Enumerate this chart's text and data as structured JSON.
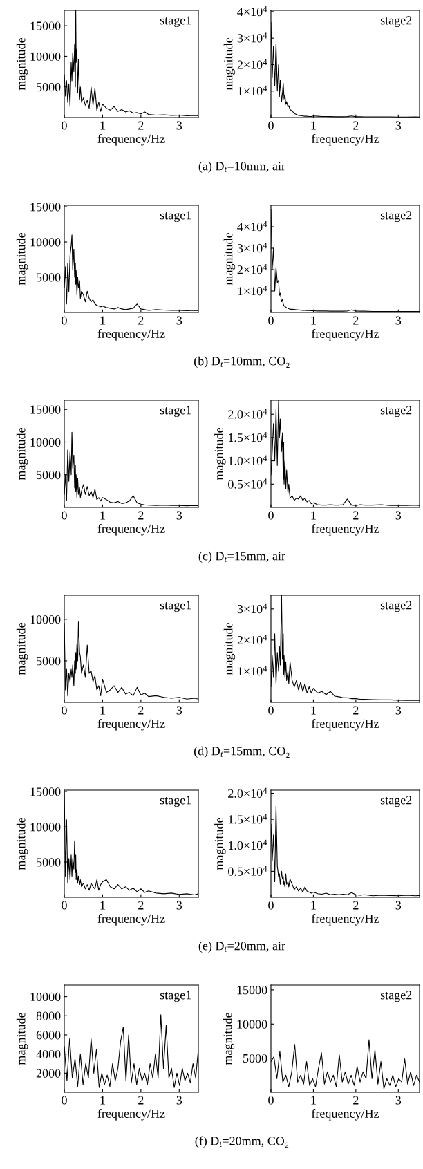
{
  "chart_data": [
    {
      "type": "line",
      "xlabel": "frequency/Hz",
      "ylabel": "magnitude",
      "xlim": [
        0,
        3.5
      ],
      "xticks": [
        0,
        1,
        2,
        3
      ],
      "ylim": [
        0,
        17500
      ],
      "yticks": [
        5000,
        10000,
        15000
      ],
      "x": [
        0,
        0.03,
        0.06,
        0.09,
        0.12,
        0.15,
        0.18,
        0.2,
        0.22,
        0.25,
        0.27,
        0.29,
        0.3,
        0.31,
        0.33,
        0.35,
        0.37,
        0.4,
        0.42,
        0.45,
        0.5,
        0.55,
        0.6,
        0.65,
        0.7,
        0.75,
        0.8,
        0.85,
        0.9,
        0.95,
        1.0,
        1.1,
        1.2,
        1.3,
        1.4,
        1.5,
        1.6,
        1.7,
        1.8,
        1.9,
        2.0,
        2.1,
        2.2,
        2.4,
        2.6,
        2.8,
        3.0,
        3.2,
        3.4,
        3.5
      ],
      "series": [
        {
          "color": "#000000",
          "values": [
            7000,
            3500,
            6000,
            2500,
            5500,
            1800,
            9000,
            6000,
            10500,
            7500,
            12000,
            5000,
            17500,
            9000,
            11200,
            4000,
            9500,
            3000,
            5000,
            2500,
            3200,
            2000,
            2800,
            1500,
            5000,
            2000,
            4800,
            1200,
            2500,
            1000,
            2200,
            1500,
            1200,
            1800,
            1000,
            1300,
            900,
            1100,
            700,
            800,
            600,
            900,
            500,
            400,
            450,
            350,
            400,
            300,
            350,
            300
          ]
        }
      ],
      "annotations": [
        "stage1",
        "(a) D$_{t}$=10mm, air"
      ]
    },
    {
      "type": "line",
      "xlabel": "frequency/Hz",
      "ylabel": "magnitude",
      "xlim": [
        0,
        3.5
      ],
      "xticks": [
        0,
        1,
        2,
        3
      ],
      "ylim": [
        0,
        40500
      ],
      "yticks": [
        {
          "value": 10000,
          "label": "1×10$^{4}$"
        },
        {
          "value": 20000,
          "label": "2×10$^{4}$"
        },
        {
          "value": 30000,
          "label": "3×10$^{4}$"
        },
        {
          "value": 40000,
          "label": "4×10$^{4}$"
        }
      ],
      "x": [
        0,
        0.03,
        0.06,
        0.09,
        0.12,
        0.15,
        0.18,
        0.2,
        0.22,
        0.25,
        0.27,
        0.29,
        0.3,
        0.31,
        0.33,
        0.35,
        0.37,
        0.4,
        0.42,
        0.45,
        0.5,
        0.55,
        0.6,
        0.65,
        0.7,
        0.75,
        0.8,
        0.85,
        0.9,
        0.95,
        1.0,
        1.1,
        1.2,
        1.3,
        1.4,
        1.5,
        1.6,
        1.7,
        1.8,
        1.9,
        2.0,
        2.1,
        2.2,
        2.4,
        2.6,
        2.8,
        3.0,
        3.2,
        3.4,
        3.5
      ],
      "series": [
        {
          "color": "#000000",
          "values": [
            36000,
            15000,
            27000,
            12000,
            28000,
            10000,
            20000,
            8000,
            14000,
            6000,
            9000,
            13000,
            10000,
            7000,
            8500,
            5000,
            6000,
            4000,
            4500,
            3000,
            2500,
            1500,
            1200,
            800,
            700,
            600,
            500,
            500,
            400,
            400,
            600,
            500,
            400,
            400,
            350,
            300,
            300,
            300,
            350,
            600,
            300,
            300,
            250,
            250,
            250,
            250,
            200,
            200,
            250,
            200
          ]
        }
      ],
      "annotations": [
        "stage2"
      ]
    },
    {
      "type": "line",
      "xlabel": "frequency/Hz",
      "ylabel": "magnitude",
      "xlim": [
        0,
        3.5
      ],
      "xticks": [
        0,
        1,
        2,
        3
      ],
      "ylim": [
        0,
        15200
      ],
      "yticks": [
        5000,
        10000,
        15000
      ],
      "x": [
        0,
        0.03,
        0.06,
        0.09,
        0.12,
        0.15,
        0.18,
        0.2,
        0.22,
        0.25,
        0.27,
        0.29,
        0.3,
        0.31,
        0.33,
        0.35,
        0.37,
        0.4,
        0.42,
        0.45,
        0.5,
        0.55,
        0.6,
        0.65,
        0.7,
        0.75,
        0.8,
        0.85,
        0.9,
        0.95,
        1.0,
        1.1,
        1.2,
        1.3,
        1.4,
        1.5,
        1.6,
        1.7,
        1.8,
        1.9,
        2.0,
        2.1,
        2.2,
        2.4,
        2.6,
        2.8,
        3.0,
        3.2,
        3.4,
        3.5
      ],
      "series": [
        {
          "color": "#000000",
          "values": [
            3500,
            6500,
            1200,
            7000,
            3000,
            8000,
            9500,
            11000,
            6000,
            9000,
            5000,
            7000,
            4000,
            6000,
            2500,
            5000,
            3500,
            4500,
            2000,
            3000,
            2500,
            1500,
            3000,
            2000,
            1500,
            1800,
            1200,
            1000,
            900,
            800,
            900,
            700,
            600,
            500,
            700,
            500,
            400,
            500,
            600,
            1200,
            500,
            400,
            300,
            400,
            350,
            300,
            300,
            250,
            300,
            250
          ]
        }
      ],
      "annotations": [
        "stage1",
        "(b) D$_{t}$=10mm, CO₂"
      ]
    },
    {
      "type": "line",
      "xlabel": "frequency/Hz",
      "ylabel": "magnitude",
      "xlim": [
        0,
        3.5
      ],
      "xticks": [
        0,
        1,
        2,
        3
      ],
      "ylim": [
        0,
        50000
      ],
      "yticks": [
        {
          "value": 10000,
          "label": "1×10$^{4}$"
        },
        {
          "value": 20000,
          "label": "2×10$^{4}$"
        },
        {
          "value": 30000,
          "label": "3×10$^{4}$"
        },
        {
          "value": 40000,
          "label": "4×10$^{4}$"
        }
      ],
      "x": [
        0,
        0.03,
        0.06,
        0.09,
        0.12,
        0.15,
        0.18,
        0.2,
        0.22,
        0.25,
        0.27,
        0.29,
        0.3,
        0.31,
        0.33,
        0.35,
        0.37,
        0.4,
        0.42,
        0.45,
        0.5,
        0.55,
        0.6,
        0.65,
        0.7,
        0.75,
        0.8,
        0.85,
        0.9,
        0.95,
        1.0,
        1.1,
        1.2,
        1.3,
        1.4,
        1.5,
        1.6,
        1.7,
        1.8,
        1.9,
        2.0,
        2.1,
        2.2,
        2.4,
        2.6,
        2.8,
        3.0,
        3.2,
        3.4,
        3.5
      ],
      "series": [
        {
          "color": "#000000",
          "values": [
            48000,
            20000,
            30000,
            10000,
            21000,
            14000,
            15000,
            8000,
            9000,
            5000,
            6000,
            4000,
            3500,
            3000,
            2800,
            2500,
            2200,
            2000,
            1800,
            1500,
            1500,
            1400,
            1300,
            1200,
            1100,
            1000,
            1000,
            900,
            900,
            800,
            800,
            700,
            700,
            700,
            600,
            600,
            600,
            600,
            700,
            1200,
            700,
            600,
            600,
            500,
            500,
            500,
            500,
            500,
            500,
            500
          ]
        }
      ],
      "annotations": [
        "stage2"
      ]
    },
    {
      "type": "line",
      "xlabel": "frequency/Hz",
      "ylabel": "magnitude",
      "xlim": [
        0,
        3.5
      ],
      "xticks": [
        0,
        1,
        2,
        3
      ],
      "ylim": [
        0,
        16400
      ],
      "yticks": [
        5000,
        10000,
        15000
      ],
      "x": [
        0,
        0.03,
        0.06,
        0.09,
        0.12,
        0.15,
        0.18,
        0.2,
        0.22,
        0.25,
        0.27,
        0.29,
        0.3,
        0.31,
        0.33,
        0.35,
        0.37,
        0.4,
        0.42,
        0.45,
        0.5,
        0.55,
        0.6,
        0.65,
        0.7,
        0.75,
        0.8,
        0.85,
        0.9,
        0.95,
        1.0,
        1.1,
        1.2,
        1.3,
        1.4,
        1.5,
        1.6,
        1.7,
        1.8,
        1.9,
        2.0,
        2.1,
        2.2,
        2.4,
        2.6,
        2.8,
        3.0,
        3.2,
        3.4,
        3.5
      ],
      "series": [
        {
          "color": "#000000",
          "values": [
            2000,
            5000,
            1000,
            8800,
            4000,
            8500,
            5000,
            11500,
            6000,
            8000,
            3000,
            6500,
            2500,
            5000,
            1500,
            4500,
            2000,
            3000,
            1500,
            2500,
            3500,
            2000,
            3200,
            1800,
            2500,
            1500,
            2800,
            1200,
            1500,
            1000,
            1500,
            1200,
            800,
            700,
            900,
            600,
            700,
            1000,
            1800,
            700,
            500,
            400,
            350,
            300,
            350,
            300,
            300,
            250,
            300,
            250
          ]
        }
      ],
      "annotations": [
        "stage1",
        "(c) D$_{t}$=15mm, air"
      ]
    },
    {
      "type": "line",
      "xlabel": "frequency/Hz",
      "ylabel": "magnitude",
      "xlim": [
        0,
        3.5
      ],
      "xticks": [
        0,
        1,
        2,
        3
      ],
      "ylim": [
        0,
        23000
      ],
      "yticks": [
        {
          "value": 5000,
          "label": "0.5×10$^{4}$"
        },
        {
          "value": 10000,
          "label": "1.0×10$^{4}$"
        },
        {
          "value": 15000,
          "label": "1.5×10$^{4}$"
        },
        {
          "value": 20000,
          "label": "2.0×10$^{4}$"
        }
      ],
      "x": [
        0,
        0.03,
        0.06,
        0.09,
        0.12,
        0.15,
        0.18,
        0.2,
        0.22,
        0.25,
        0.27,
        0.29,
        0.3,
        0.31,
        0.33,
        0.35,
        0.37,
        0.4,
        0.42,
        0.45,
        0.5,
        0.55,
        0.6,
        0.65,
        0.7,
        0.75,
        0.8,
        0.85,
        0.9,
        0.95,
        1.0,
        1.1,
        1.2,
        1.3,
        1.4,
        1.5,
        1.6,
        1.7,
        1.8,
        1.9,
        2.0,
        2.1,
        2.2,
        2.4,
        2.6,
        2.8,
        3.0,
        3.2,
        3.4,
        3.5
      ],
      "series": [
        {
          "color": "#000000",
          "values": [
            7000,
            12000,
            18000,
            10000,
            21000,
            9000,
            23000,
            15000,
            19000,
            12000,
            16000,
            6000,
            14000,
            5000,
            10000,
            4000,
            8000,
            3000,
            5000,
            2000,
            2500,
            1500,
            2000,
            1800,
            2500,
            1500,
            2000,
            1200,
            1500,
            800,
            1000,
            600,
            500,
            500,
            600,
            500,
            500,
            600,
            1800,
            500,
            400,
            600,
            500,
            500,
            600,
            400,
            400,
            400,
            500,
            400
          ]
        }
      ],
      "annotations": [
        "stage2"
      ]
    },
    {
      "type": "line",
      "xlabel": "frequency/Hz",
      "ylabel": "magnitude",
      "xlim": [
        0,
        3.5
      ],
      "xticks": [
        0,
        1,
        2,
        3
      ],
      "ylim": [
        0,
        12900
      ],
      "yticks": [
        5000,
        10000
      ],
      "x": [
        0,
        0.03,
        0.06,
        0.09,
        0.12,
        0.15,
        0.18,
        0.2,
        0.22,
        0.25,
        0.27,
        0.29,
        0.3,
        0.31,
        0.33,
        0.35,
        0.37,
        0.4,
        0.42,
        0.45,
        0.5,
        0.55,
        0.6,
        0.65,
        0.7,
        0.75,
        0.8,
        0.85,
        0.9,
        0.95,
        1.0,
        1.1,
        1.2,
        1.3,
        1.4,
        1.5,
        1.6,
        1.7,
        1.8,
        1.9,
        2.0,
        2.1,
        2.2,
        2.4,
        2.6,
        2.8,
        3.0,
        3.2,
        3.4,
        3.5
      ],
      "series": [
        {
          "color": "#000000",
          "values": [
            9500,
            1500,
            4000,
            800,
            3500,
            2500,
            4000,
            3000,
            4500,
            2000,
            5000,
            3500,
            6000,
            4000,
            7000,
            5000,
            9700,
            6000,
            5500,
            3500,
            4500,
            3000,
            6900,
            3500,
            3800,
            2500,
            3200,
            1500,
            2000,
            800,
            2800,
            1200,
            1500,
            2000,
            1200,
            1800,
            1000,
            1200,
            800,
            1800,
            900,
            1100,
            700,
            800,
            600,
            500,
            600,
            400,
            500,
            400
          ]
        }
      ],
      "annotations": [
        "stage1",
        "(d) D$_{t}$=15mm, CO₂"
      ]
    },
    {
      "type": "line",
      "xlabel": "frequency/Hz",
      "ylabel": "magnitude",
      "xlim": [
        0,
        3.5
      ],
      "xticks": [
        0,
        1,
        2,
        3
      ],
      "ylim": [
        0,
        34400
      ],
      "yticks": [
        {
          "value": 10000,
          "label": "1×10$^{4}$"
        },
        {
          "value": 20000,
          "label": "2×10$^{4}$"
        },
        {
          "value": 30000,
          "label": "3×10$^{4}$"
        }
      ],
      "x": [
        0,
        0.03,
        0.06,
        0.09,
        0.12,
        0.15,
        0.18,
        0.2,
        0.22,
        0.25,
        0.27,
        0.29,
        0.3,
        0.31,
        0.33,
        0.35,
        0.37,
        0.4,
        0.42,
        0.45,
        0.5,
        0.55,
        0.6,
        0.65,
        0.7,
        0.75,
        0.8,
        0.85,
        0.9,
        0.95,
        1.0,
        1.1,
        1.2,
        1.3,
        1.4,
        1.5,
        1.6,
        1.7,
        1.8,
        1.9,
        2.0,
        2.1,
        2.2,
        2.4,
        2.6,
        2.8,
        3.0,
        3.2,
        3.4,
        3.5
      ],
      "series": [
        {
          "color": "#000000",
          "values": [
            5000,
            15000,
            8000,
            22000,
            6000,
            16000,
            10000,
            18000,
            12000,
            34400,
            14000,
            22000,
            9000,
            15000,
            8000,
            13000,
            7000,
            10000,
            6000,
            13000,
            7000,
            5000,
            7000,
            4000,
            6500,
            3500,
            6000,
            3000,
            5000,
            3000,
            4500,
            3000,
            3500,
            2500,
            3500,
            2000,
            1800,
            1500,
            1500,
            1200,
            1200,
            1000,
            1000,
            900,
            800,
            800,
            700,
            600,
            700,
            600
          ]
        }
      ],
      "annotations": [
        "stage2"
      ]
    },
    {
      "type": "line",
      "xlabel": "frequency/Hz",
      "ylabel": "magnitude",
      "xlim": [
        0,
        3.5
      ],
      "xticks": [
        0,
        1,
        2,
        3
      ],
      "ylim": [
        0,
        15200
      ],
      "yticks": [
        5000,
        10000,
        15000
      ],
      "x": [
        0,
        0.03,
        0.06,
        0.09,
        0.12,
        0.15,
        0.18,
        0.2,
        0.22,
        0.25,
        0.27,
        0.29,
        0.3,
        0.31,
        0.33,
        0.35,
        0.37,
        0.4,
        0.42,
        0.45,
        0.5,
        0.55,
        0.6,
        0.65,
        0.7,
        0.75,
        0.8,
        0.85,
        0.9,
        0.95,
        1.0,
        1.1,
        1.2,
        1.3,
        1.4,
        1.5,
        1.6,
        1.7,
        1.8,
        1.9,
        2.0,
        2.1,
        2.2,
        2.4,
        2.6,
        2.8,
        3.0,
        3.2,
        3.4,
        3.5
      ],
      "series": [
        {
          "color": "#000000",
          "values": [
            15000,
            3000,
            11000,
            2000,
            5500,
            2500,
            6000,
            3000,
            5500,
            4000,
            8000,
            3500,
            6000,
            2500,
            4000,
            2000,
            3000,
            1800,
            2500,
            1500,
            2000,
            1200,
            1800,
            1000,
            2000,
            1500,
            1200,
            2500,
            1000,
            1800,
            2200,
            2500,
            1500,
            1200,
            1800,
            1200,
            1500,
            1000,
            1300,
            800,
            1200,
            700,
            900,
            600,
            500,
            600,
            400,
            500,
            350,
            500
          ]
        }
      ],
      "annotations": [
        "stage1",
        "(e) D$_{t}$=20mm, air"
      ]
    },
    {
      "type": "line",
      "xlabel": "frequency/Hz",
      "ylabel": "magnitude",
      "xlim": [
        0,
        3.5
      ],
      "xticks": [
        0,
        1,
        2,
        3
      ],
      "ylim": [
        0,
        20600
      ],
      "yticks": [
        {
          "value": 5000,
          "label": "0.5×10$^{4}$"
        },
        {
          "value": 10000,
          "label": "1.0×10$^{4}$"
        },
        {
          "value": 15000,
          "label": "1.5×10$^{4}$"
        },
        {
          "value": 20000,
          "label": "2.0×10$^{4}$"
        }
      ],
      "x": [
        0,
        0.03,
        0.06,
        0.09,
        0.12,
        0.15,
        0.18,
        0.2,
        0.22,
        0.25,
        0.27,
        0.29,
        0.3,
        0.31,
        0.33,
        0.35,
        0.37,
        0.4,
        0.42,
        0.45,
        0.5,
        0.55,
        0.6,
        0.65,
        0.7,
        0.75,
        0.8,
        0.85,
        0.9,
        0.95,
        1.0,
        1.1,
        1.2,
        1.3,
        1.4,
        1.5,
        1.6,
        1.7,
        1.8,
        1.9,
        2.0,
        2.1,
        2.2,
        2.4,
        2.6,
        2.8,
        3.0,
        3.2,
        3.4,
        3.5
      ],
      "series": [
        {
          "color": "#000000",
          "values": [
            14000,
            7000,
            12000,
            3000,
            17500,
            6000,
            4000,
            4500,
            2500,
            5000,
            3500,
            4000,
            2500,
            3000,
            2000,
            4500,
            2500,
            3000,
            2000,
            3500,
            2500,
            1500,
            2000,
            1200,
            1800,
            1000,
            2000,
            1200,
            1000,
            800,
            1000,
            700,
            600,
            800,
            500,
            600,
            500,
            600,
            500,
            900,
            500,
            400,
            500,
            300,
            400,
            350,
            300,
            400,
            300,
            350
          ]
        }
      ],
      "annotations": [
        "stage2"
      ]
    },
    {
      "type": "line",
      "xlabel": "frequency/Hz",
      "ylabel": "magnitude",
      "xlim": [
        0,
        3.5
      ],
      "xticks": [
        0,
        1,
        2,
        3
      ],
      "ylim": [
        0,
        11200
      ],
      "yticks": [
        2000,
        4000,
        6000,
        8000,
        10000
      ],
      "x": [
        0,
        0.07,
        0.14,
        0.21,
        0.28,
        0.35,
        0.42,
        0.49,
        0.56,
        0.63,
        0.7,
        0.77,
        0.84,
        0.91,
        0.98,
        1.05,
        1.12,
        1.19,
        1.26,
        1.33,
        1.4,
        1.47,
        1.54,
        1.61,
        1.68,
        1.75,
        1.82,
        1.89,
        1.96,
        2.03,
        2.1,
        2.17,
        2.24,
        2.31,
        2.38,
        2.45,
        2.52,
        2.59,
        2.66,
        2.73,
        2.8,
        2.87,
        2.94,
        3.01,
        3.08,
        3.15,
        3.22,
        3.29,
        3.36,
        3.43,
        3.5
      ],
      "series": [
        {
          "color": "#000000",
          "values": [
            4800,
            1200,
            5600,
            1500,
            3500,
            600,
            4000,
            800,
            3000,
            1500,
            5600,
            2000,
            4500,
            500,
            2000,
            800,
            1800,
            600,
            3000,
            1200,
            2500,
            5300,
            6800,
            1200,
            6000,
            1000,
            3000,
            800,
            2500,
            1200,
            2000,
            800,
            3000,
            1500,
            4000,
            1500,
            8100,
            2500,
            7000,
            1500,
            2500,
            500,
            2000,
            700,
            2500,
            1200,
            2000,
            1000,
            3000,
            1500,
            4500
          ]
        }
      ],
      "annotations": [
        "stage1",
        "(f) D$_{t}$=20mm, CO₂"
      ]
    },
    {
      "type": "line",
      "xlabel": "frequency/Hz",
      "ylabel": "magnitude",
      "xlim": [
        0,
        3.5
      ],
      "xticks": [
        0,
        1,
        2,
        3
      ],
      "ylim": [
        0,
        15700
      ],
      "yticks": [
        5000,
        10000,
        15000
      ],
      "x": [
        0,
        0.07,
        0.14,
        0.21,
        0.28,
        0.35,
        0.42,
        0.49,
        0.56,
        0.63,
        0.7,
        0.77,
        0.84,
        0.91,
        0.98,
        1.05,
        1.12,
        1.19,
        1.26,
        1.33,
        1.4,
        1.47,
        1.54,
        1.61,
        1.68,
        1.75,
        1.82,
        1.89,
        1.96,
        2.03,
        2.1,
        2.17,
        2.24,
        2.31,
        2.38,
        2.45,
        2.52,
        2.59,
        2.66,
        2.73,
        2.8,
        2.87,
        2.94,
        3.01,
        3.08,
        3.15,
        3.22,
        3.29,
        3.36,
        3.43,
        3.5
      ],
      "series": [
        {
          "color": "#000000",
          "values": [
            4500,
            5200,
            2000,
            6000,
            1500,
            2500,
            800,
            3000,
            7000,
            1500,
            2500,
            1200,
            4500,
            1000,
            2000,
            800,
            3500,
            5800,
            1200,
            3000,
            1500,
            2500,
            800,
            5500,
            1500,
            3000,
            1200,
            2500,
            1000,
            3800,
            1500,
            3000,
            2000,
            7700,
            2000,
            6200,
            1200,
            4500,
            500,
            2000,
            1000,
            2500,
            800,
            2000,
            1500,
            4900,
            1200,
            3000,
            1000,
            2500,
            1500
          ]
        }
      ],
      "annotations": [
        "stage2"
      ]
    }
  ]
}
